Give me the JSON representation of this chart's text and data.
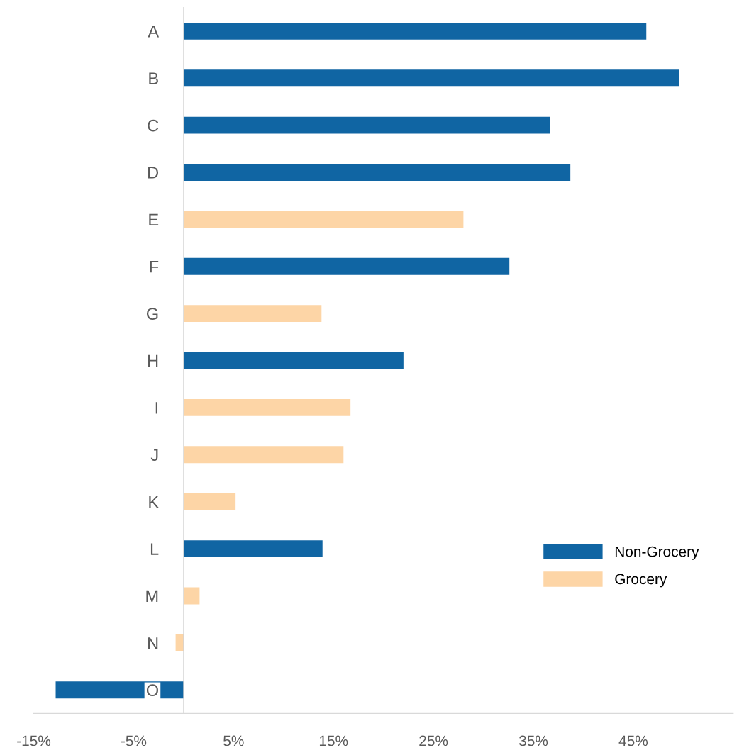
{
  "chart_data": {
    "type": "bar",
    "orientation": "horizontal",
    "categories": [
      "A",
      "B",
      "C",
      "D",
      "E",
      "F",
      "G",
      "H",
      "I",
      "J",
      "K",
      "L",
      "M",
      "N",
      "O"
    ],
    "series": [
      {
        "name": "Non-Grocery",
        "color": "#1065a3",
        "values": [
          46.3,
          49.6,
          36.7,
          38.7,
          null,
          32.6,
          null,
          22.0,
          null,
          null,
          null,
          13.9,
          null,
          null,
          -12.8
        ]
      },
      {
        "name": "Grocery",
        "color": "#fdd5a6",
        "values": [
          null,
          null,
          null,
          null,
          28.0,
          null,
          13.8,
          null,
          16.7,
          16.0,
          5.2,
          null,
          1.6,
          -0.8,
          null
        ]
      }
    ],
    "xlim": [
      -15,
      55
    ],
    "xticks": [
      {
        "value": -15,
        "label": "-15%"
      },
      {
        "value": -5,
        "label": "-5%"
      },
      {
        "value": 5,
        "label": "5%"
      },
      {
        "value": 15,
        "label": "15%"
      },
      {
        "value": 25,
        "label": "25%"
      },
      {
        "value": 35,
        "label": "35%"
      },
      {
        "value": 45,
        "label": "45%"
      }
    ],
    "grid": false,
    "legend": "right"
  }
}
